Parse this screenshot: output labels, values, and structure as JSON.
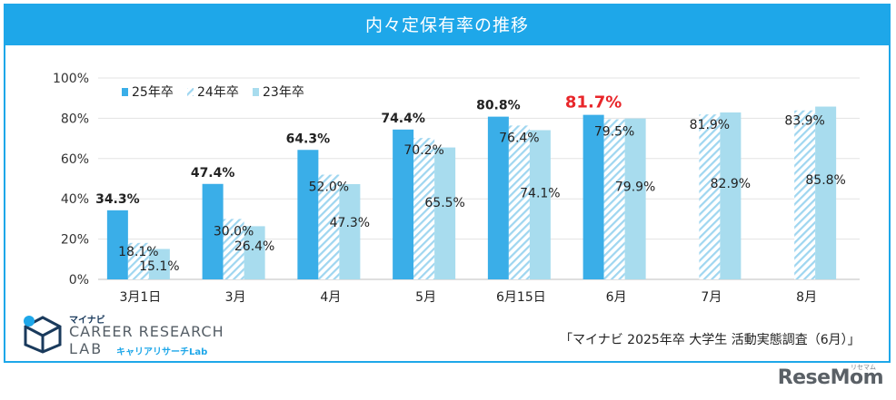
{
  "title": "内々定保有率の推移",
  "source": "「マイナビ 2025年卒 大学生 活動実態調査（6月）」",
  "branding": {
    "small": "マイナビ",
    "line1": "CAREER RESEARCH",
    "line2": "LAB",
    "kana": "キャリアリサーチLab"
  },
  "watermark": "ReseMom",
  "watermark_kana": "リセマム",
  "colors": {
    "accent": "#1ea7e9",
    "series_25": "#3aaee8",
    "series_24_stripe": "#9fd6f0",
    "series_23": "#a8dcee",
    "highlight": "#e8262a"
  },
  "chart_data": {
    "type": "bar",
    "categories": [
      "3月1日",
      "3月",
      "4月",
      "5月",
      "6月15日",
      "6月",
      "7月",
      "8月"
    ],
    "series": [
      {
        "name": "25年卒",
        "values": [
          34.3,
          47.4,
          64.3,
          74.4,
          80.8,
          81.7,
          null,
          null
        ],
        "labels": [
          "34.3%",
          "47.4%",
          "64.3%",
          "74.4%",
          "80.8%",
          "81.7%",
          "",
          ""
        ],
        "pattern": "solid"
      },
      {
        "name": "24年卒",
        "values": [
          18.1,
          30.0,
          52.0,
          70.2,
          76.4,
          79.5,
          81.9,
          83.9
        ],
        "labels": [
          "18.1%",
          "30.0%",
          "52.0%",
          "70.2%",
          "76.4%",
          "79.5%",
          "81.9%",
          "83.9%"
        ],
        "pattern": "striped"
      },
      {
        "name": "23年卒",
        "values": [
          15.1,
          26.4,
          47.3,
          65.5,
          74.1,
          79.9,
          82.9,
          85.8
        ],
        "labels": [
          "15.1%",
          "26.4%",
          "47.3%",
          "65.5%",
          "74.1%",
          "79.9%",
          "82.9%",
          "85.8%"
        ],
        "pattern": "solid-light"
      }
    ],
    "yticks": [
      "0%",
      "20%",
      "40%",
      "60%",
      "80%",
      "100%"
    ],
    "ylim": [
      0,
      100
    ],
    "grid": true,
    "legend_position": "top-left",
    "highlight_index": 5
  }
}
